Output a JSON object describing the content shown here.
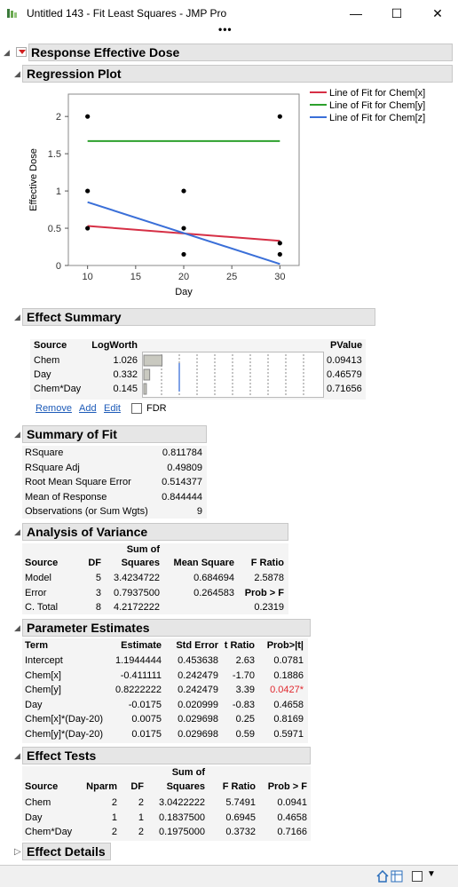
{
  "window": {
    "title": "Untitled 143 - Fit Least Squares - JMP Pro",
    "minimize": "—",
    "maximize": "☐",
    "close": "✕",
    "more": "•••"
  },
  "report": {
    "title": "Response Effective Dose"
  },
  "regression_plot": {
    "title": "Regression Plot",
    "legend": [
      "Line of Fit for Chem[x]",
      "Line of Fit for Chem[y]",
      "Line of Fit for Chem[z]"
    ],
    "colors": {
      "x": "#d62f45",
      "y": "#2ca02c",
      "z": "#3a6fd8"
    },
    "chart_data": {
      "type": "scatter",
      "xlabel": "Day",
      "ylabel": "Effective Dose",
      "xlim": [
        8,
        32
      ],
      "ylim": [
        0,
        2.3
      ],
      "xticks": [
        "10",
        "15",
        "20",
        "25",
        "30"
      ],
      "yticks": [
        "0",
        "0.5",
        "1",
        "1.5",
        "2"
      ],
      "points": [
        [
          10,
          2
        ],
        [
          10,
          1
        ],
        [
          10,
          0.5
        ],
        [
          20,
          1
        ],
        [
          20,
          0.5
        ],
        [
          20,
          0.15
        ],
        [
          30,
          2
        ],
        [
          30,
          0.3
        ],
        [
          30,
          0.15
        ]
      ],
      "series": [
        {
          "name": "Line of Fit for Chem[x]",
          "x": [
            10,
            30
          ],
          "y": [
            0.53,
            0.33
          ]
        },
        {
          "name": "Line of Fit for Chem[y]",
          "x": [
            10,
            30
          ],
          "y": [
            1.67,
            1.67
          ]
        },
        {
          "name": "Line of Fit for Chem[z]",
          "x": [
            10,
            30
          ],
          "y": [
            0.85,
            0.02
          ]
        }
      ]
    }
  },
  "effect_summary": {
    "title": "Effect Summary",
    "headers": [
      "Source",
      "LogWorth",
      "PValue"
    ],
    "rows": [
      {
        "source": "Chem",
        "logworth": "1.026",
        "pvalue": "0.09413",
        "bar": 1.026
      },
      {
        "source": "Day",
        "logworth": "0.332",
        "pvalue": "0.46579",
        "bar": 0.332
      },
      {
        "source": "Chem*Day",
        "logworth": "0.145",
        "pvalue": "0.71656",
        "bar": 0.145
      }
    ],
    "links": [
      "Remove",
      "Add",
      "Edit"
    ],
    "fdr_label": "FDR"
  },
  "summary_of_fit": {
    "title": "Summary of Fit",
    "rows": [
      [
        "RSquare",
        "0.811784"
      ],
      [
        "RSquare Adj",
        "0.49809"
      ],
      [
        "Root Mean Square Error",
        "0.514377"
      ],
      [
        "Mean of Response",
        "0.844444"
      ],
      [
        "Observations (or Sum Wgts)",
        "9"
      ]
    ]
  },
  "anova": {
    "title": "Analysis of Variance",
    "headers": [
      "Source",
      "DF",
      "Sum of",
      "Squares",
      "Mean Square",
      "F Ratio"
    ],
    "rows": [
      [
        "Model",
        "5",
        "3.4234722",
        "0.684694",
        "2.5878"
      ],
      [
        "Error",
        "3",
        "0.7937500",
        "0.264583",
        "Prob > F"
      ],
      [
        "C. Total",
        "8",
        "4.2172222",
        "",
        "0.2319"
      ]
    ]
  },
  "parameter_estimates": {
    "title": "Parameter Estimates",
    "headers": [
      "Term",
      "Estimate",
      "Std Error",
      "t Ratio",
      "Prob>|t|"
    ],
    "rows": [
      [
        "Intercept",
        "1.1944444",
        "0.453638",
        "2.63",
        "0.0781"
      ],
      [
        "Chem[x]",
        "-0.411111",
        "0.242479",
        "-1.70",
        "0.1886"
      ],
      [
        "Chem[y]",
        "0.8222222",
        "0.242479",
        "3.39",
        "0.0427*"
      ],
      [
        "Day",
        "-0.0175",
        "0.020999",
        "-0.83",
        "0.4658"
      ],
      [
        "Chem[x]*(Day-20)",
        "0.0075",
        "0.029698",
        "0.25",
        "0.8169"
      ],
      [
        "Chem[y]*(Day-20)",
        "0.0175",
        "0.029698",
        "0.59",
        "0.5971"
      ]
    ],
    "sig_color": "#e0282e"
  },
  "effect_tests": {
    "title": "Effect Tests",
    "headers": [
      "Source",
      "Nparm",
      "DF",
      "Sum of",
      "Squares",
      "F Ratio",
      "Prob > F"
    ],
    "rows": [
      [
        "Chem",
        "2",
        "2",
        "3.0422222",
        "5.7491",
        "0.0941"
      ],
      [
        "Day",
        "1",
        "1",
        "0.1837500",
        "0.6945",
        "0.4658"
      ],
      [
        "Chem*Day",
        "2",
        "2",
        "0.1975000",
        "0.3732",
        "0.7166"
      ]
    ]
  },
  "effect_details": {
    "title": "Effect Details"
  }
}
